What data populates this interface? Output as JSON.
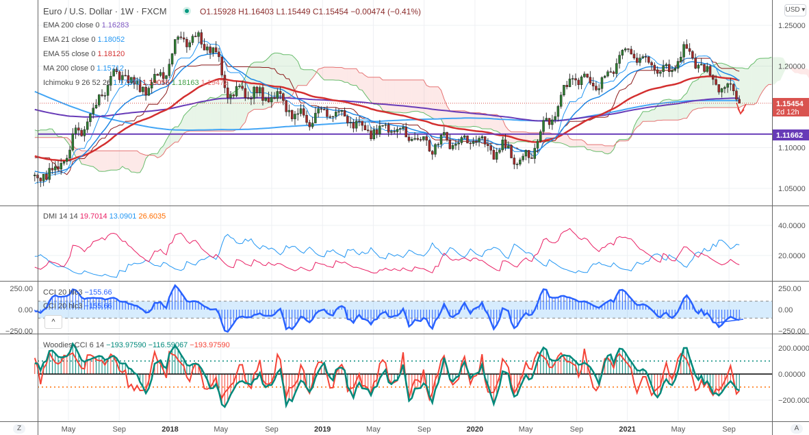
{
  "header": {
    "symbol": "Euro / U.S. Dollar · 1W · FXCM",
    "open": "O1.15928",
    "high": "H1.16403",
    "low": "L1.15449",
    "close": "C1.15454",
    "change": "−0.00474 (−0.41%)"
  },
  "legend": {
    "ema200": {
      "label": "EMA 200 close 0",
      "value": "1.16283",
      "color": "#7e57c2"
    },
    "ema21": {
      "label": "EMA 21 close 0",
      "value": "1.18052",
      "color": "#2196f3"
    },
    "ema55": {
      "label": "EMA 55 close 0",
      "value": "1.18120",
      "color": "#d32f2f"
    },
    "ma200": {
      "label": "MA 200 close 0",
      "value": "1.15712",
      "color": "#42a5f5"
    },
    "ichimoku": {
      "label": "Ichimoku 9 26 52 26",
      "v1": "1.17270",
      "v2": "1.19056",
      "v3": "1.18163",
      "v4": "1.19472"
    },
    "dmi": {
      "label": "DMI 14 14",
      "plus": "19.7014",
      "minus": "13.0901",
      "adx": "26.6035"
    },
    "cci": {
      "label": "CCI 20 hlc3",
      "value": "−155.66"
    },
    "woodies": {
      "label": "Woodies CCI 6 14",
      "v1": "−193.97590",
      "v2": "−116.59067",
      "v3": "−193.97590"
    }
  },
  "axes": {
    "currency": "USD",
    "price_ticks": [
      "1.25000",
      "1.20000",
      "1.10000",
      "1.05000"
    ],
    "price_tick_values": [
      1.25,
      1.2,
      1.1,
      1.05
    ],
    "last_price": "1.15454",
    "countdown": "2d 12h",
    "hline_price": "1.11662",
    "dmi_ticks": [
      "40.0000",
      "20.0000"
    ],
    "cci_ticks": [
      "250.00",
      "0.00",
      "−250.00"
    ],
    "woodies_ticks": [
      "200.00000",
      "0.00000",
      "−200.0000"
    ],
    "time_labels": [
      {
        "label": "May",
        "month": 16
      },
      {
        "label": "Sep",
        "month": 20
      },
      {
        "label": "2018",
        "month": 24
      },
      {
        "label": "May",
        "month": 28
      },
      {
        "label": "Sep",
        "month": 32
      },
      {
        "label": "2019",
        "month": 36
      },
      {
        "label": "May",
        "month": 40
      },
      {
        "label": "Sep",
        "month": 44
      },
      {
        "label": "2020",
        "month": 48
      },
      {
        "label": "May",
        "month": 52
      },
      {
        "label": "Sep",
        "month": 56
      },
      {
        "label": "2021",
        "month": 60
      },
      {
        "label": "May",
        "month": 64
      },
      {
        "label": "Sep",
        "month": 68
      }
    ],
    "z_button": "Z",
    "a_button": "A",
    "collapse": "^"
  },
  "colors": {
    "up": "#2e7d32",
    "down": "#a52a2a",
    "cloud_up": "#4caf50",
    "cloud_down": "#ef9a9a",
    "cci": "#2962ff",
    "wood14": "#00897b",
    "wood6": "#f44336",
    "hline": "#673ab7",
    "last": "#d9534f"
  },
  "chart_data": {
    "type": "candlestick",
    "timeframe": "1W",
    "month_origin": "2016-01",
    "monthly_close": [
      1.085,
      1.11,
      1.12,
      1.14,
      1.13,
      1.12,
      1.11,
      1.12,
      1.12,
      1.1,
      1.07,
      1.045,
      1.06,
      1.065,
      1.07,
      1.08,
      1.115,
      1.13,
      1.16,
      1.185,
      1.19,
      1.17,
      1.18,
      1.19,
      1.23,
      1.235,
      1.23,
      1.22,
      1.17,
      1.165,
      1.17,
      1.16,
      1.165,
      1.145,
      1.135,
      1.14,
      1.145,
      1.135,
      1.13,
      1.12,
      1.12,
      1.13,
      1.115,
      1.11,
      1.1,
      1.11,
      1.105,
      1.11,
      1.105,
      1.095,
      1.1,
      1.085,
      1.095,
      1.125,
      1.15,
      1.185,
      1.18,
      1.175,
      1.185,
      1.215,
      1.215,
      1.21,
      1.19,
      1.195,
      1.22,
      1.205,
      1.185,
      1.175,
      1.165
    ],
    "last_bar": {
      "open": 1.15928,
      "high": 1.16403,
      "low": 1.15449,
      "close": 1.15454
    },
    "ylim": [
      1.03,
      1.26
    ]
  }
}
